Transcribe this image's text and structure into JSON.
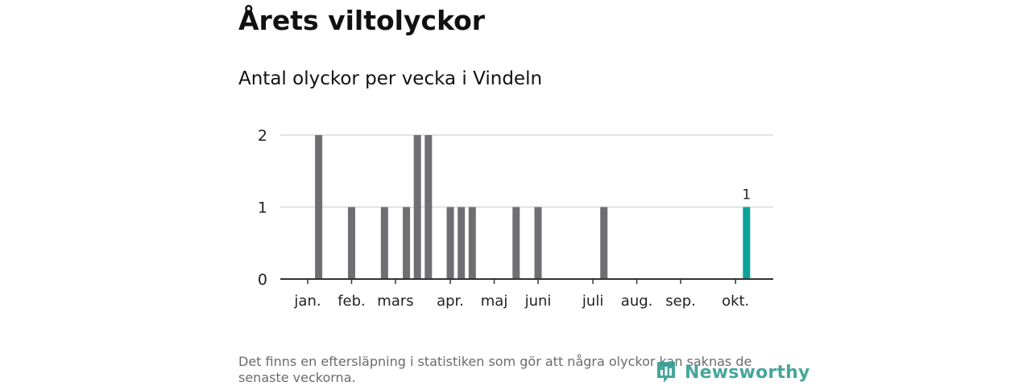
{
  "title": "Årets viltolyckor",
  "subtitle": "Antal olyckor per vecka i Vindeln",
  "footnote": "Det finns en eftersläpning i statistiken som gör att några olyckor kan saknas de senaste veckorna.",
  "brand": {
    "name": "Newsworthy",
    "icon": "newsworthy-logo-icon",
    "color": "#2e9a8e"
  },
  "colors": {
    "bar": "#6f6e73",
    "highlight": "#0aa39b",
    "grid": "#d9d9d9",
    "axis": "#333333"
  },
  "chart_data": {
    "type": "bar",
    "title": "Årets viltolyckor",
    "subtitle": "Antal olyckor per vecka i Vindeln",
    "xlabel": "",
    "ylabel": "",
    "ylim": [
      0,
      2
    ],
    "yticks": [
      0,
      1,
      2
    ],
    "grid": true,
    "legend": "none",
    "x_tick_labels": [
      {
        "label": "jan.",
        "week": 1
      },
      {
        "label": "feb.",
        "week": 5
      },
      {
        "label": "mars",
        "week": 9
      },
      {
        "label": "apr.",
        "week": 14
      },
      {
        "label": "maj",
        "week": 18
      },
      {
        "label": "juni",
        "week": 22
      },
      {
        "label": "juli",
        "week": 27
      },
      {
        "label": "aug.",
        "week": 31
      },
      {
        "label": "sep.",
        "week": 35
      },
      {
        "label": "okt.",
        "week": 40
      }
    ],
    "bars": [
      {
        "week": 2,
        "value": 2
      },
      {
        "week": 5,
        "value": 1
      },
      {
        "week": 8,
        "value": 1
      },
      {
        "week": 10,
        "value": 1
      },
      {
        "week": 11,
        "value": 2
      },
      {
        "week": 12,
        "value": 2
      },
      {
        "week": 14,
        "value": 1
      },
      {
        "week": 15,
        "value": 1
      },
      {
        "week": 16,
        "value": 1
      },
      {
        "week": 20,
        "value": 1
      },
      {
        "week": 22,
        "value": 1
      },
      {
        "week": 28,
        "value": 1
      },
      {
        "week": 41,
        "value": 1,
        "highlight": true,
        "label": "1"
      }
    ]
  }
}
